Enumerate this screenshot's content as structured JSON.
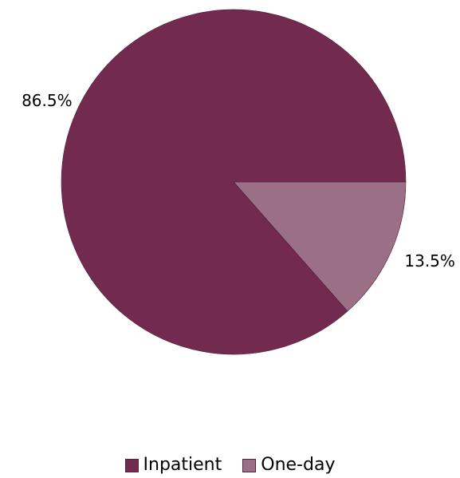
{
  "chart_data": {
    "type": "pie",
    "categories": [
      "Inpatient",
      "One-day"
    ],
    "values": [
      86.5,
      13.5
    ],
    "data_labels": [
      "86.5%",
      "13.5%"
    ],
    "colors": [
      "#732a4f",
      "#9b7086"
    ],
    "title": "",
    "legend_position": "bottom"
  },
  "legend": {
    "items": [
      {
        "label": "Inpatient",
        "color": "#732a4f"
      },
      {
        "label": "One-day",
        "color": "#9b7086"
      }
    ]
  }
}
